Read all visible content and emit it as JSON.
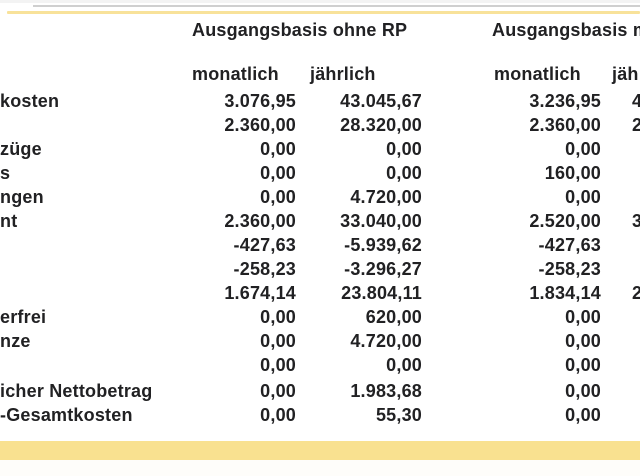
{
  "colors": {
    "accent_yellow_band": "#F9E190",
    "accent_yellow_rule": "#F8E29A",
    "divider_grey": "#CFCFCF",
    "text": "#212123"
  },
  "table": {
    "groups": [
      {
        "title": "Ausgangsbasis ohne RP",
        "monthly_header": "monatlich",
        "yearly_header": "jährlich"
      },
      {
        "title": "Ausgangsbasis m",
        "monthly_header": "monatlich",
        "yearly_header": "jäh"
      }
    ],
    "gap_before_row_index": 12,
    "rows": [
      {
        "label": "kosten",
        "g1_monthly": "3.076,95",
        "g1_yearly": "43.045,67",
        "g2_monthly": "3.236,95",
        "g2_yearly_fragment": "4"
      },
      {
        "label": "",
        "g1_monthly": "2.360,00",
        "g1_yearly": "28.320,00",
        "g2_monthly": "2.360,00",
        "g2_yearly_fragment": "2"
      },
      {
        "label": "züge",
        "g1_monthly": "0,00",
        "g1_yearly": "0,00",
        "g2_monthly": "0,00",
        "g2_yearly_fragment": ""
      },
      {
        "label": "s",
        "g1_monthly": "0,00",
        "g1_yearly": "0,00",
        "g2_monthly": "160,00",
        "g2_yearly_fragment": ""
      },
      {
        "label": "ngen",
        "g1_monthly": "0,00",
        "g1_yearly": "4.720,00",
        "g2_monthly": "0,00",
        "g2_yearly_fragment": ""
      },
      {
        "label": "nt",
        "g1_monthly": "2.360,00",
        "g1_yearly": "33.040,00",
        "g2_monthly": "2.520,00",
        "g2_yearly_fragment": "3"
      },
      {
        "label": "",
        "g1_monthly": "-427,63",
        "g1_yearly": "-5.939,62",
        "g2_monthly": "-427,63",
        "g2_yearly_fragment": ""
      },
      {
        "label": "",
        "g1_monthly": "-258,23",
        "g1_yearly": "-3.296,27",
        "g2_monthly": "-258,23",
        "g2_yearly_fragment": ""
      },
      {
        "label": "",
        "g1_monthly": "1.674,14",
        "g1_yearly": "23.804,11",
        "g2_monthly": "1.834,14",
        "g2_yearly_fragment": "2"
      },
      {
        "label": "erfrei",
        "g1_monthly": "0,00",
        "g1_yearly": "620,00",
        "g2_monthly": "0,00",
        "g2_yearly_fragment": ""
      },
      {
        "label": "nze",
        "g1_monthly": "0,00",
        "g1_yearly": "4.720,00",
        "g2_monthly": "0,00",
        "g2_yearly_fragment": ""
      },
      {
        "label": "",
        "g1_monthly": "0,00",
        "g1_yearly": "0,00",
        "g2_monthly": "0,00",
        "g2_yearly_fragment": ""
      },
      {
        "label": "icher Nettobetrag",
        "g1_monthly": "0,00",
        "g1_yearly": "1.983,68",
        "g2_monthly": "0,00",
        "g2_yearly_fragment": ""
      },
      {
        "label": "-Gesamtkosten",
        "g1_monthly": "0,00",
        "g1_yearly": "55,30",
        "g2_monthly": "0,00",
        "g2_yearly_fragment": ""
      }
    ]
  }
}
